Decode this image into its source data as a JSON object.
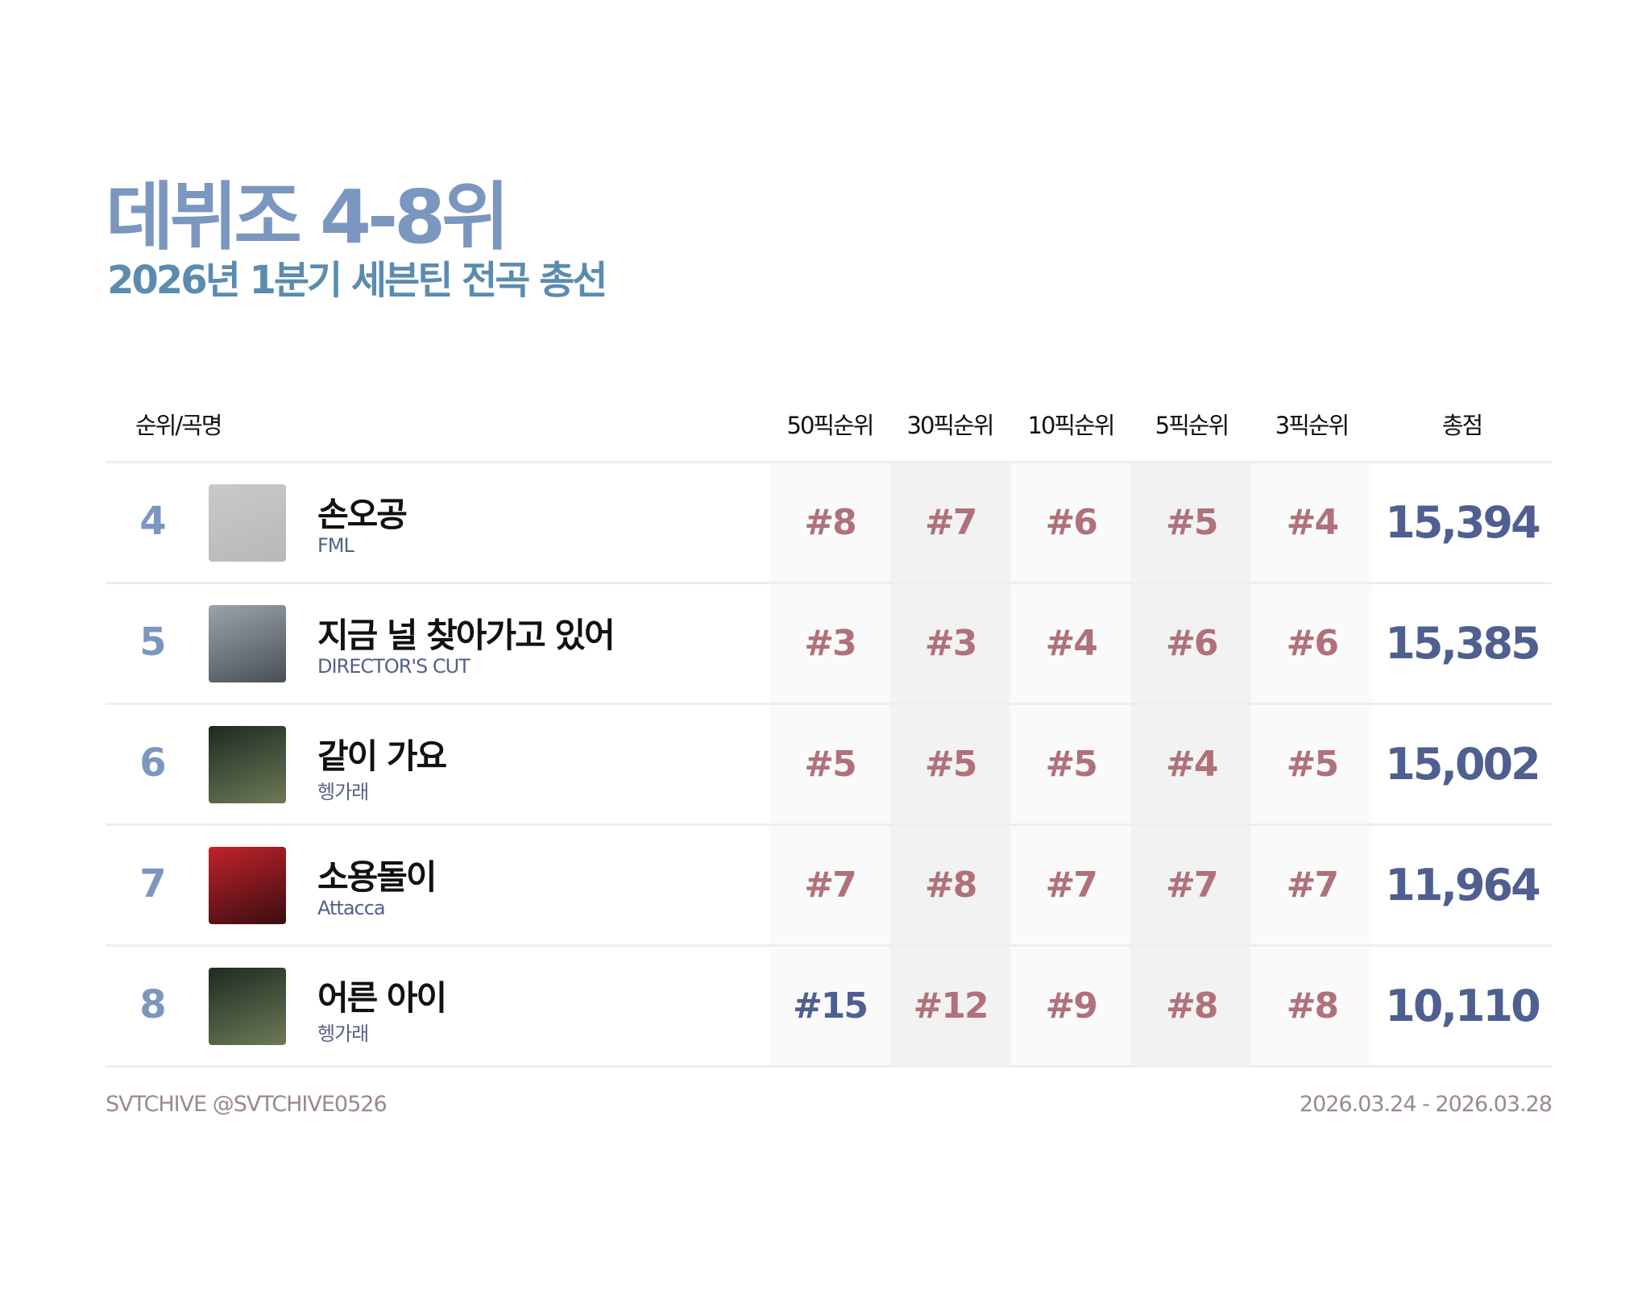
{
  "header": {
    "title": "데뷔조 4-8위",
    "subtitle": "2026년 1분기 세븐틴 전곡 총선"
  },
  "columns": [
    "순위/곡명",
    "50픽순위",
    "30픽순위",
    "10픽순위",
    "5픽순위",
    "3픽순위",
    "총점"
  ],
  "colors": {
    "rank_text": "#b0717a",
    "rank_text_low": "#4f5f90",
    "total": "#4f5f90",
    "title": "#7b97c0",
    "subtitle": "#5b8cae"
  },
  "rows": [
    {
      "rank": "4",
      "song": "손오공",
      "album": "FML",
      "picks": [
        "#8",
        "#7",
        "#6",
        "#5",
        "#4"
      ],
      "total": "15,394",
      "thumb": [
        "#c9c9c9",
        "#b8b8b8"
      ]
    },
    {
      "rank": "5",
      "song": "지금 널 찾아가고 있어",
      "album": "DIRECTOR'S CUT",
      "picks": [
        "#3",
        "#3",
        "#4",
        "#6",
        "#6"
      ],
      "total": "15,385",
      "thumb": [
        "#9aa3ad",
        "#4a4f57"
      ]
    },
    {
      "rank": "6",
      "song": "같이 가요",
      "album": "헹가래",
      "picks": [
        "#5",
        "#5",
        "#5",
        "#4",
        "#5"
      ],
      "total": "15,002",
      "thumb": [
        "#1d2a22",
        "#6d7a55"
      ]
    },
    {
      "rank": "7",
      "song": "소용돌이",
      "album": "Attacca",
      "picks": [
        "#7",
        "#8",
        "#7",
        "#7",
        "#7"
      ],
      "total": "11,964",
      "thumb": [
        "#c0232a",
        "#3a0d10"
      ]
    },
    {
      "rank": "8",
      "song": "어른 아이",
      "album": "헹가래",
      "picks": [
        "#15",
        "#12",
        "#9",
        "#8",
        "#8"
      ],
      "total": "10,110",
      "thumb": [
        "#1d2a22",
        "#6d7a55"
      ]
    }
  ],
  "footer": {
    "credit": "SVTCHIVE @SVTCHIVE0526",
    "period": "2026.03.24 - 2026.03.28"
  }
}
